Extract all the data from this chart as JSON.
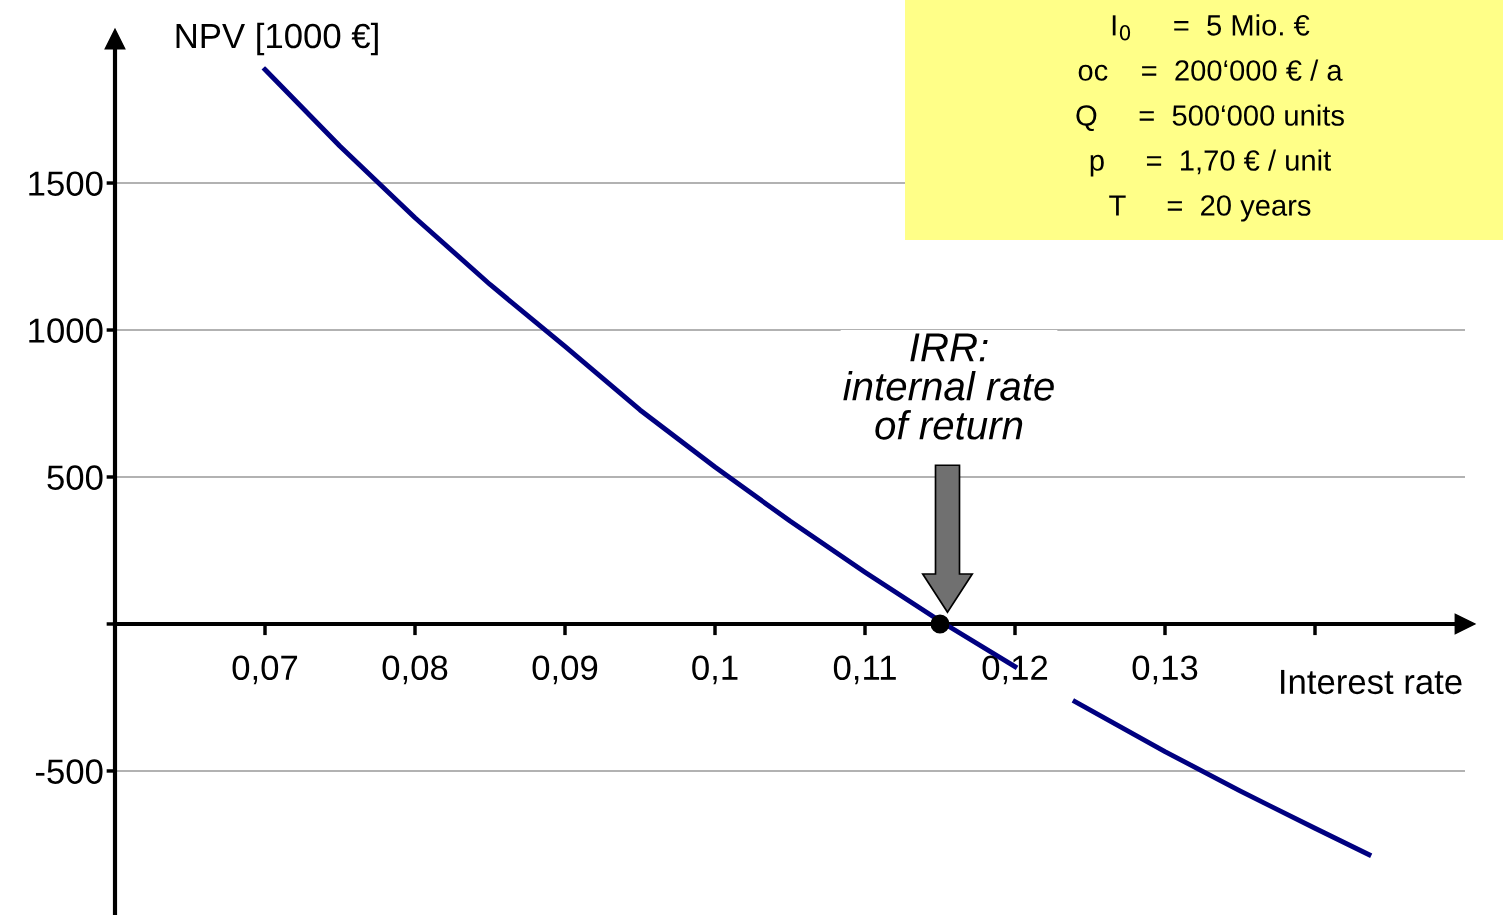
{
  "chart_data": {
    "type": "line",
    "ylabel": "NPV [1000 €]",
    "xlabel": "Interest rate",
    "x": [
      0.07,
      0.075,
      0.08,
      0.085,
      0.09,
      0.095,
      0.1,
      0.105,
      0.11,
      0.115,
      0.12,
      0.122,
      0.124,
      0.13,
      0.135,
      0.14,
      0.1436
    ],
    "series": [
      {
        "color": "#000080",
        "values": [
          1886,
          1625,
          1382,
          1155,
          944,
          728,
          534,
          350,
          176,
          10,
          -145,
          null,
          -264,
          -434,
          -568,
          -695,
          -785
        ]
      },
      {
        "type": "scatter",
        "marker": "circle",
        "color": "#000000",
        "x": [
          0.115
        ],
        "values": [
          0
        ]
      }
    ],
    "xlim": [
      0.06,
      0.15
    ],
    "ylim": [
      -990,
      1990
    ],
    "xticks": [
      {
        "value": 0.07,
        "label": "0,07"
      },
      {
        "value": 0.08,
        "label": "0,08"
      },
      {
        "value": 0.09,
        "label": "0,09"
      },
      {
        "value": 0.1,
        "label": "0,1"
      },
      {
        "value": 0.11,
        "label": "0,11"
      },
      {
        "value": 0.12,
        "label": "0,12"
      },
      {
        "value": 0.13,
        "label": "0,13"
      },
      {
        "value": 0.14,
        "label": null
      }
    ],
    "yticks": [
      -500,
      {
        "value": 0,
        "label": null
      },
      500,
      1000,
      1500
    ],
    "grid": "y",
    "legend": false,
    "marker": "none",
    "line_style": "solid",
    "annotations": [
      "IRR:\ninternal rate\nof return",
      "I$_{0}$     =  5 Mio. €",
      "oc    =  200‘000 € / a",
      "Q     =  500‘000 units",
      "p     =  1,70 € / unit",
      "T     =  20 years"
    ]
  }
}
